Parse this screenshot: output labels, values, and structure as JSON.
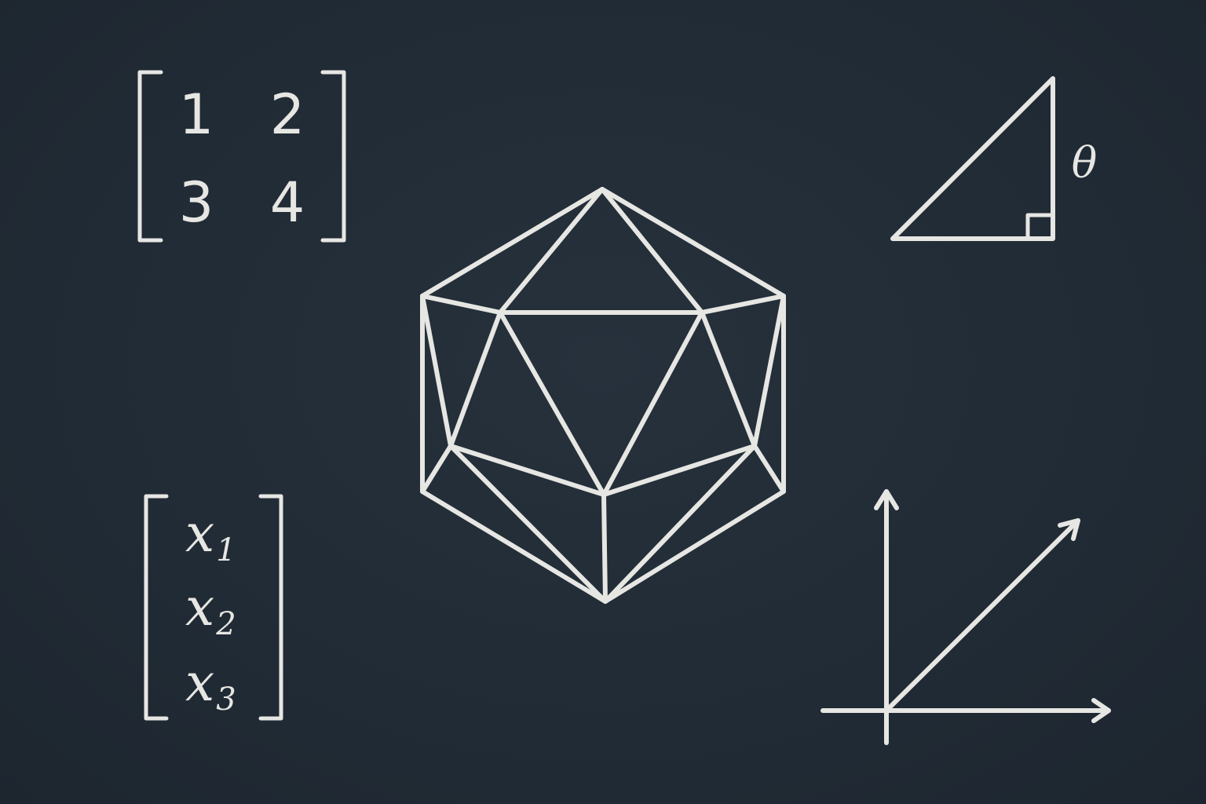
{
  "matrix": {
    "entries": [
      "1",
      "2",
      "3",
      "4"
    ]
  },
  "column_vector": {
    "entries": [
      {
        "var": "x",
        "sub": "1"
      },
      {
        "var": "x",
        "sub": "2"
      },
      {
        "var": "x",
        "sub": "3"
      }
    ]
  },
  "triangle": {
    "angle_label": "θ"
  },
  "colors": {
    "background": "#222c36",
    "chalk": "#e6e6e3"
  }
}
